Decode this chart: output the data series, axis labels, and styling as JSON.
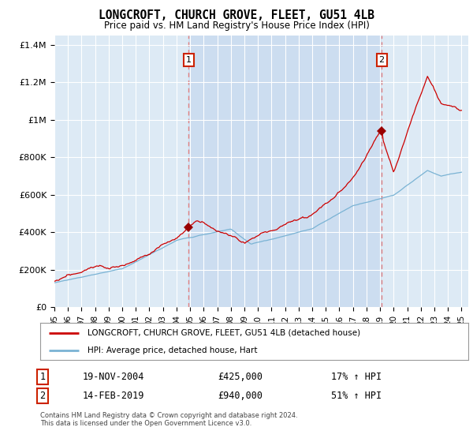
{
  "title": "LONGCROFT, CHURCH GROVE, FLEET, GU51 4LB",
  "subtitle": "Price paid vs. HM Land Registry's House Price Index (HPI)",
  "ylabel_ticks": [
    "£0",
    "£200K",
    "£400K",
    "£600K",
    "£800K",
    "£1M",
    "£1.2M",
    "£1.4M"
  ],
  "ytick_vals": [
    0,
    200000,
    400000,
    600000,
    800000,
    1000000,
    1200000,
    1400000
  ],
  "ylim": [
    0,
    1450000
  ],
  "xlim_start": 1995.0,
  "xlim_end": 2025.5,
  "sale1_x": 2004.89,
  "sale1_y": 425000,
  "sale1_label": "1",
  "sale2_x": 2019.12,
  "sale2_y": 940000,
  "sale2_label": "2",
  "hpi_color": "#7ab3d4",
  "price_color": "#cc0000",
  "marker_color": "#990000",
  "vline_color": "#e08080",
  "grid_color": "#cccccc",
  "background_color": "#ddeaf5",
  "highlight_color": "#ccddf0",
  "legend_line1": "LONGCROFT, CHURCH GROVE, FLEET, GU51 4LB (detached house)",
  "legend_line2": "HPI: Average price, detached house, Hart",
  "table_row1_num": "1",
  "table_row1_date": "19-NOV-2004",
  "table_row1_price": "£425,000",
  "table_row1_hpi": "17% ↑ HPI",
  "table_row2_num": "2",
  "table_row2_date": "14-FEB-2019",
  "table_row2_price": "£940,000",
  "table_row2_hpi": "51% ↑ HPI",
  "footer": "Contains HM Land Registry data © Crown copyright and database right 2024.\nThis data is licensed under the Open Government Licence v3.0."
}
